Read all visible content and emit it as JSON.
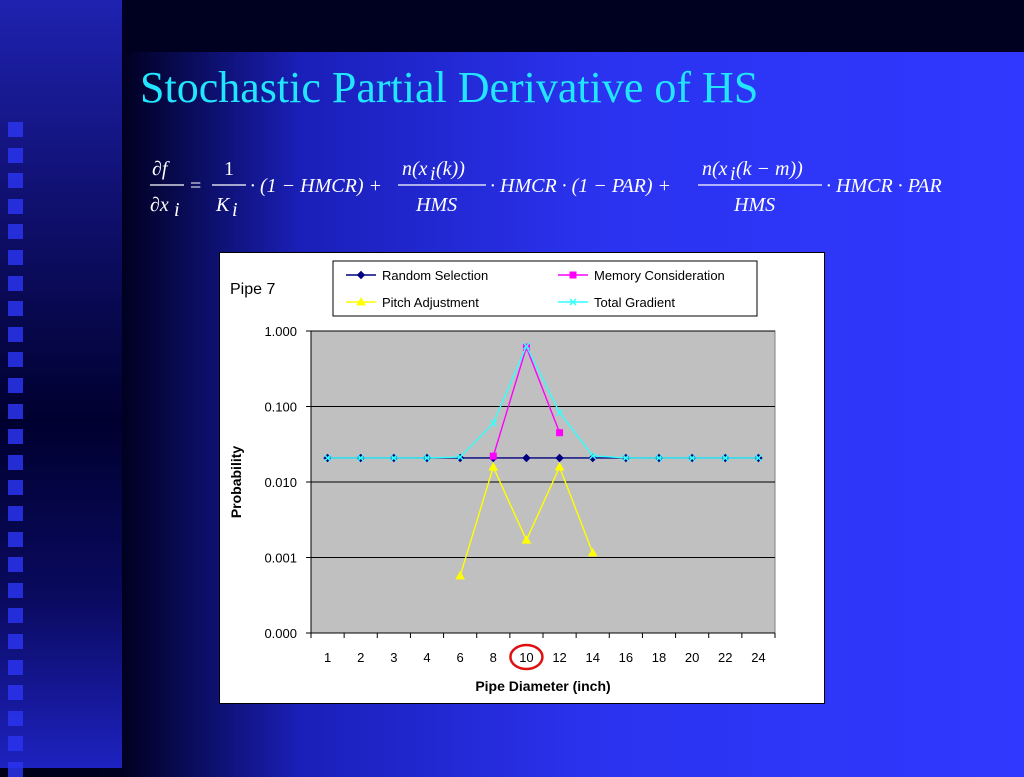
{
  "slide": {
    "title": "Stochastic Partial Derivative of HS"
  },
  "formula": {
    "lhs_num": "∂f",
    "lhs_den_prefix": "∂x",
    "lhs_den_sub": "i",
    "eq": "=",
    "t1_num": "1",
    "t1_den": "K",
    "t1_den_sub": "i",
    "t1_factor": "· (1 − HMCR) +",
    "t2_num_a": "n(x",
    "t2_num_sub": "i",
    "t2_num_b": "(k))",
    "t2_den": "HMS",
    "t2_factor": "· HMCR · (1 − PAR) +",
    "t3_num_a": "n(x",
    "t3_num_sub": "i",
    "t3_num_b": "(k − m))",
    "t3_den": "HMS",
    "t3_factor": "· HMCR · PAR"
  },
  "chart_data": {
    "type": "line",
    "title": "Pipe 7",
    "xlabel": "Pipe Diameter (inch)",
    "ylabel": "Probability",
    "yscale": "log",
    "ylim": [
      0.0001,
      1.0
    ],
    "yticks": [
      1.0,
      0.1,
      0.01,
      0.001,
      0.0001
    ],
    "ytick_labels": [
      "1.000",
      "0.100",
      "0.010",
      "0.001",
      "0.000"
    ],
    "categories": [
      "1",
      "2",
      "3",
      "4",
      "6",
      "8",
      "10",
      "12",
      "14",
      "16",
      "18",
      "20",
      "22",
      "24"
    ],
    "highlighted_category": "10",
    "highlight_color": "#e01010",
    "plot_background": "#c0c0c0",
    "grid": true,
    "legend_position": "top",
    "series": [
      {
        "name": "Random Selection",
        "color": "#000080",
        "marker": "diamond",
        "values": [
          0.0208,
          0.0208,
          0.0208,
          0.0208,
          0.0208,
          0.0208,
          0.0208,
          0.0208,
          0.0208,
          0.0208,
          0.0208,
          0.0208,
          0.0208,
          0.0208
        ]
      },
      {
        "name": "Memory Consideration",
        "color": "#ff00ff",
        "marker": "square",
        "values": [
          null,
          null,
          null,
          null,
          null,
          0.022,
          0.61,
          0.045,
          null,
          null,
          null,
          null,
          null,
          null
        ]
      },
      {
        "name": "Pitch Adjustment",
        "color": "#ffff00",
        "marker": "triangle",
        "values": [
          null,
          null,
          null,
          null,
          0.00057,
          0.0158,
          0.0017,
          0.0158,
          0.00115,
          null,
          null,
          null,
          null,
          null
        ]
      },
      {
        "name": "Total Gradient",
        "color": "#33ffff",
        "marker": "x",
        "values": [
          0.0208,
          0.0208,
          0.0208,
          0.0208,
          0.0214,
          0.06,
          0.63,
          0.083,
          0.0222,
          0.0208,
          0.0208,
          0.0208,
          0.0208,
          0.0208
        ]
      }
    ]
  }
}
